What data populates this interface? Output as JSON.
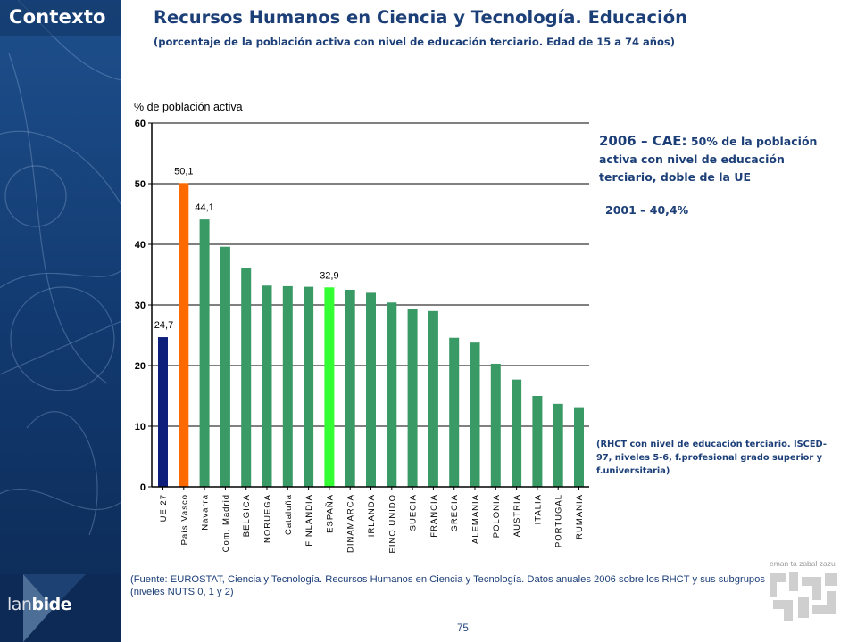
{
  "section_label": "Contexto",
  "title": "Recursos Humanos en Ciencia y Tecnología. Educación",
  "subtitle": "(porcentaje de la población activa con nivel de educación terciario. Edad de 15 a 74 años)",
  "annotation": {
    "main_year": "2006 – CAE:",
    "main_text": "50% de la población activa con nivel de educación terciario, doble de la UE",
    "year_2001": "2001 – 40,4%",
    "note": "(RHCT con nivel de educación terciario. ISCED-97, niveles 5-6, f.profesional grado superior y f.universitaria)"
  },
  "source": "(Fuente: EUROSTAT, Ciencia y Tecnología. Recursos Humanos en Ciencia y Tecnología. Datos anuales 2006 sobre los RHCT y sus subgrupos (niveles NUTS 0, 1 y 2)",
  "page_number": "75",
  "logo": {
    "part1": "lan",
    "part2": "bide"
  },
  "emblem_label": "eman ta zabal zazu",
  "colors": {
    "default_bar": "#3a9a66",
    "ue_bar": "#0d1f7a",
    "pais_vasco_bar": "#ff6a00",
    "espana_bar": "#33ff33",
    "title": "#1c3f78",
    "sidebar": "#133a6e"
  },
  "chart_data": {
    "type": "bar",
    "title": "",
    "ylabel": "% de población activa",
    "xlabel": "",
    "ylim": [
      0,
      60
    ],
    "yticks": [
      "0",
      "10",
      "20",
      "30",
      "40",
      "50",
      "60"
    ],
    "grid": true,
    "categories": [
      "UE 27",
      "País Vasco",
      "Navarra",
      "Com. Madrid",
      "BELGICA",
      "NORUEGA",
      "Cataluña",
      "FINLANDIA",
      "ESPAÑA",
      "DINAMARCA",
      "IRLANDA",
      "REINO UNIDO",
      "SUECIA",
      "FRANCIA",
      "GRECIA",
      "ALEMANIA",
      "POLONIA",
      "AUSTRIA",
      "ITALIA",
      "PORTUGAL",
      "RUMANIA"
    ],
    "values": [
      24.7,
      50.1,
      44.1,
      39.6,
      36.1,
      33.2,
      33.1,
      33.0,
      32.9,
      32.5,
      32.0,
      30.4,
      29.3,
      29.0,
      24.6,
      23.8,
      20.3,
      17.7,
      15.0,
      13.7,
      13.0
    ],
    "data_labels": {
      "0": "24,7",
      "1": "50,1",
      "2": "44,1",
      "8": "32,9"
    },
    "highlight_colors": {
      "0": "#0d1f7a",
      "1": "#ff6a00",
      "8": "#33ff33"
    }
  }
}
